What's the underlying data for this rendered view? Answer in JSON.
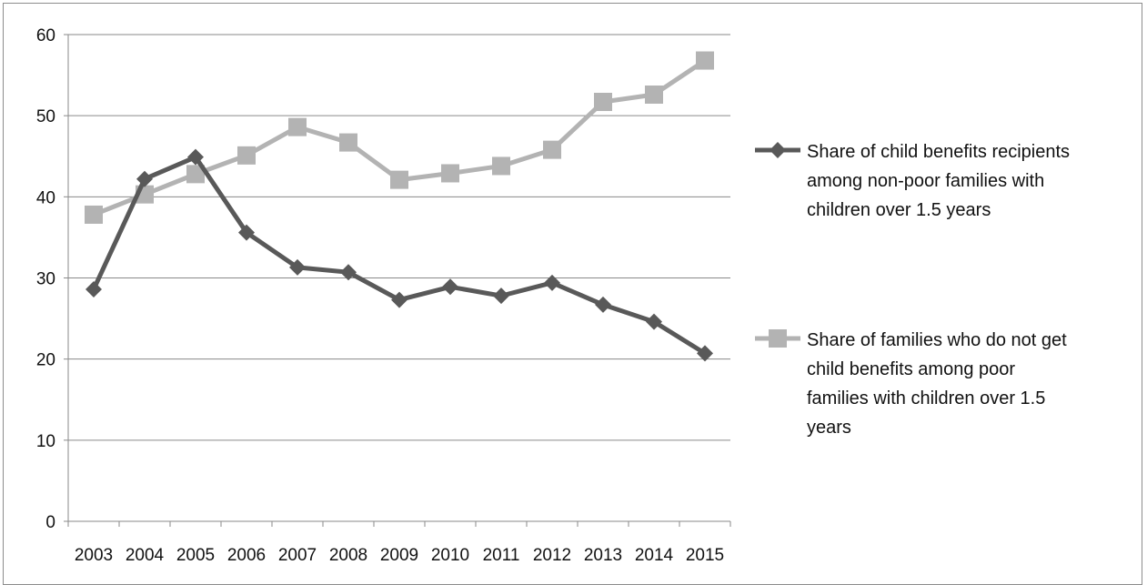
{
  "chart_data": {
    "type": "line",
    "x": [
      "2003",
      "2004",
      "2005",
      "2006",
      "2007",
      "2008",
      "2009",
      "2010",
      "2011",
      "2012",
      "2013",
      "2014",
      "2015"
    ],
    "ylim": [
      0,
      60
    ],
    "yticks": [
      0,
      10,
      20,
      30,
      40,
      50,
      60
    ],
    "grid": true,
    "legend_position": "right",
    "series": [
      {
        "name": "Share of child benefits recipients among non-poor families with children over 1.5 years",
        "legend_lines": [
          "Share of child benefits recipients",
          "among non-poor families with",
          "children over 1.5 years"
        ],
        "color": "#595959",
        "marker": "diamond",
        "values": [
          28.6,
          42.2,
          44.9,
          35.6,
          31.3,
          30.7,
          27.3,
          28.9,
          27.8,
          29.4,
          26.7,
          24.6,
          20.7
        ]
      },
      {
        "name": "Share of families who do not get child benefits among poor families with children over 1.5 years",
        "legend_lines": [
          "Share of families who do not get",
          "child benefits among poor",
          "families with children over 1.5",
          "years"
        ],
        "color": "#b3b3b3",
        "marker": "square",
        "values": [
          37.8,
          40.3,
          42.8,
          45.1,
          48.6,
          46.7,
          42.1,
          42.9,
          43.8,
          45.8,
          51.7,
          52.6,
          56.8
        ]
      }
    ]
  }
}
